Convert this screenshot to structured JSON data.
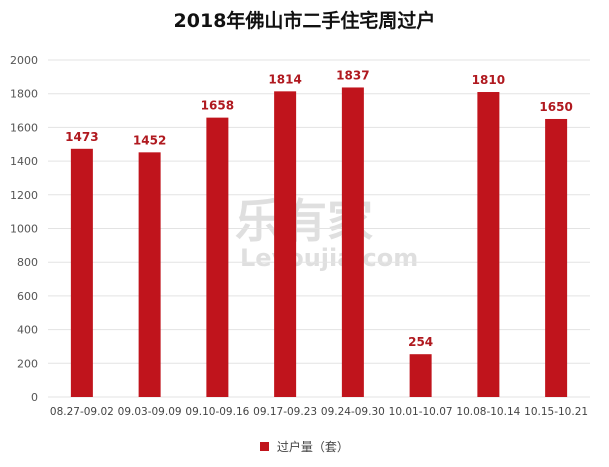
{
  "chart_data": {
    "type": "bar",
    "title": "2018年佛山市二手住宅周过户",
    "categories": [
      "08.27-09.02",
      "09.03-09.09",
      "09.10-09.16",
      "09.17-09.23",
      "09.24-09.30",
      "10.01-10.07",
      "10.08-10.14",
      "10.15-10.21"
    ],
    "series": [
      {
        "name": "过户量（套）",
        "values": [
          1473,
          1452,
          1658,
          1814,
          1837,
          254,
          1810,
          1650
        ]
      }
    ],
    "ylim": [
      0,
      2000
    ],
    "yticks": [
      0,
      200,
      400,
      600,
      800,
      1000,
      1200,
      1400,
      1600,
      1800,
      2000
    ],
    "grid": true,
    "legend": "bottom",
    "colors": {
      "bar": "#c0141c",
      "label": "#b0191f"
    }
  },
  "watermark": {
    "brand": "乐有家",
    "site": "Leyoujia.com"
  }
}
